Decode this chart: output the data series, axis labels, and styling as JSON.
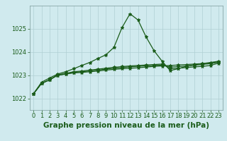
{
  "title": "Graphe pression niveau de la mer (hPa)",
  "bg_color": "#d0eaee",
  "grid_color": "#b0d0d4",
  "line_color": "#1a5c1a",
  "x_labels": [
    "0",
    "1",
    "2",
    "3",
    "4",
    "5",
    "6",
    "7",
    "8",
    "9",
    "10",
    "11",
    "12",
    "13",
    "14",
    "15",
    "16",
    "17",
    "18",
    "19",
    "20",
    "21",
    "22",
    "23"
  ],
  "yticks": [
    1022,
    1023,
    1024,
    1025
  ],
  "ylim": [
    1021.5,
    1026.0
  ],
  "xlim": [
    -0.5,
    23.5
  ],
  "series": [
    [
      1022.2,
      1022.65,
      1022.8,
      1023.0,
      1023.05,
      1023.1,
      1023.12,
      1023.15,
      1023.18,
      1023.22,
      1023.25,
      1023.28,
      1023.3,
      1023.32,
      1023.35,
      1023.38,
      1023.4,
      1023.42,
      1023.44,
      1023.46,
      1023.48,
      1023.5,
      1023.52,
      1023.58
    ],
    [
      1022.2,
      1022.65,
      1022.8,
      1023.0,
      1023.05,
      1023.12,
      1023.15,
      1023.18,
      1023.22,
      1023.26,
      1023.3,
      1023.33,
      1023.36,
      1023.38,
      1023.4,
      1023.42,
      1023.44,
      1023.35,
      1023.37,
      1023.4,
      1023.43,
      1023.46,
      1023.5,
      1023.56
    ],
    [
      1022.2,
      1022.7,
      1022.88,
      1023.05,
      1023.15,
      1023.28,
      1023.42,
      1023.55,
      1023.72,
      1023.88,
      1024.2,
      1025.05,
      1025.65,
      1025.38,
      1024.65,
      1024.05,
      1023.6,
      1023.2,
      1023.28,
      1023.38,
      1023.45,
      1023.5,
      1023.55,
      1023.6
    ],
    [
      1022.2,
      1022.65,
      1022.8,
      1023.02,
      1023.08,
      1023.15,
      1023.18,
      1023.22,
      1023.26,
      1023.3,
      1023.34,
      1023.37,
      1023.4,
      1023.42,
      1023.44,
      1023.46,
      1023.48,
      1023.28,
      1023.3,
      1023.33,
      1023.36,
      1023.38,
      1023.42,
      1023.52
    ]
  ],
  "marker": "*",
  "markersize": 3.5,
  "linewidth": 0.9,
  "title_fontsize": 7.5,
  "tick_fontsize": 6.0,
  "label_color": "#1a5c1a"
}
